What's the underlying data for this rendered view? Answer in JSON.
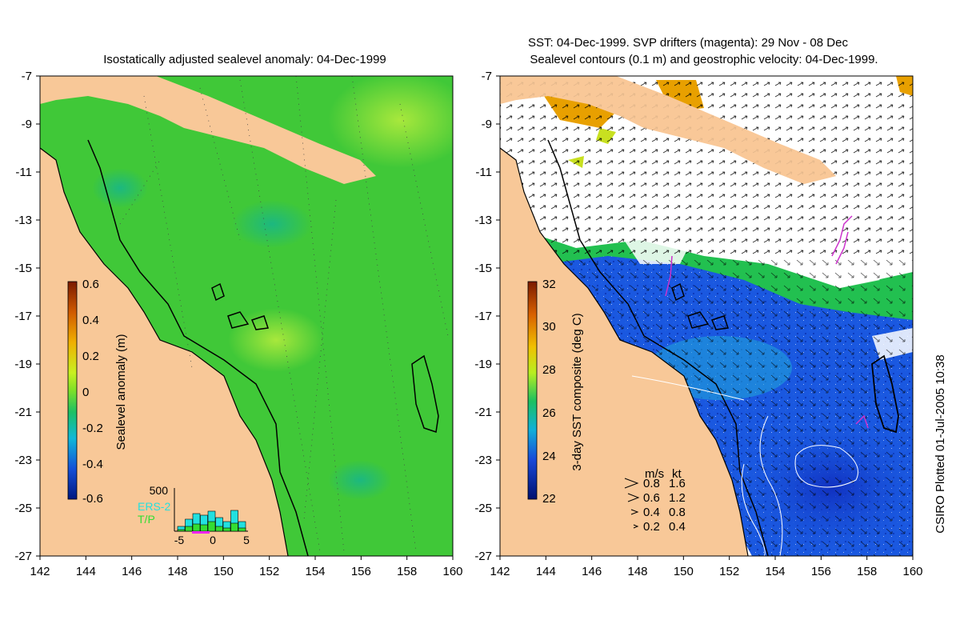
{
  "chart_data": [
    {
      "type": "heatmap",
      "title": "Isostatically adjusted sealevel anomaly: 04-Dec-1999",
      "x_ticks": [
        "142",
        "144",
        "146",
        "148",
        "150",
        "152",
        "154",
        "156",
        "158",
        "160"
      ],
      "y_ticks": [
        "-7",
        "-9",
        "-11",
        "-13",
        "-15",
        "-17",
        "-19",
        "-21",
        "-23",
        "-25",
        "-27"
      ],
      "xlim": [
        142,
        160
      ],
      "ylim": [
        -27,
        -7
      ],
      "colorbar": {
        "label": "Sealevel anomaly (m)",
        "ticks": [
          "0.6",
          "0.4",
          "0.2",
          "0",
          "-0.2",
          "-0.4",
          "-0.6"
        ],
        "range": [
          -0.6,
          0.6
        ]
      },
      "inset_histogram": {
        "ymax_label": "500",
        "x_ticks": [
          "-5",
          "0",
          "5"
        ],
        "series": [
          {
            "name": "ERS-2",
            "color": "#22e0e0",
            "values": [
              60,
              150,
              220,
              200,
              250,
              170,
              120,
              260,
              120
            ]
          },
          {
            "name": "T/P",
            "color": "#33dd33",
            "values": [
              20,
              60,
              90,
              80,
              120,
              60,
              40,
              100,
              40
            ]
          }
        ]
      }
    },
    {
      "type": "heatmap",
      "title_line1": "SST: 04-Dec-1999. SVP drifters (magenta): 29 Nov - 08 Dec",
      "title_line2": "Sealevel contours (0.1 m) and geostrophic velocity: 04-Dec-1999.",
      "x_ticks": [
        "142",
        "144",
        "146",
        "148",
        "150",
        "152",
        "154",
        "156",
        "158",
        "160"
      ],
      "y_ticks": [
        "-7",
        "-9",
        "-11",
        "-13",
        "-15",
        "-17",
        "-19",
        "-21",
        "-23",
        "-25",
        "-27"
      ],
      "xlim": [
        142,
        160
      ],
      "ylim": [
        -27,
        -7
      ],
      "colorbar": {
        "label": "3-day SST composite (deg C)",
        "ticks": [
          "32",
          "30",
          "28",
          "26",
          "24",
          "22"
        ],
        "range": [
          22,
          32
        ]
      },
      "velocity_legend": {
        "header_ms": "m/s",
        "header_kt": "kt",
        "rows": [
          {
            "ms": "0.8",
            "kt": "1.6"
          },
          {
            "ms": "0.6",
            "kt": "1.2"
          },
          {
            "ms": "0.4",
            "kt": "0.8"
          },
          {
            "ms": "0.2",
            "kt": "0.4"
          }
        ]
      }
    }
  ],
  "credit": "CSIRO Plotted 01-Jul-2005 10:38",
  "colors": {
    "land": "#f8c898",
    "ocean_green": "#3cc83c",
    "cloud": "#ffffff",
    "drifter": "#cc33cc"
  }
}
